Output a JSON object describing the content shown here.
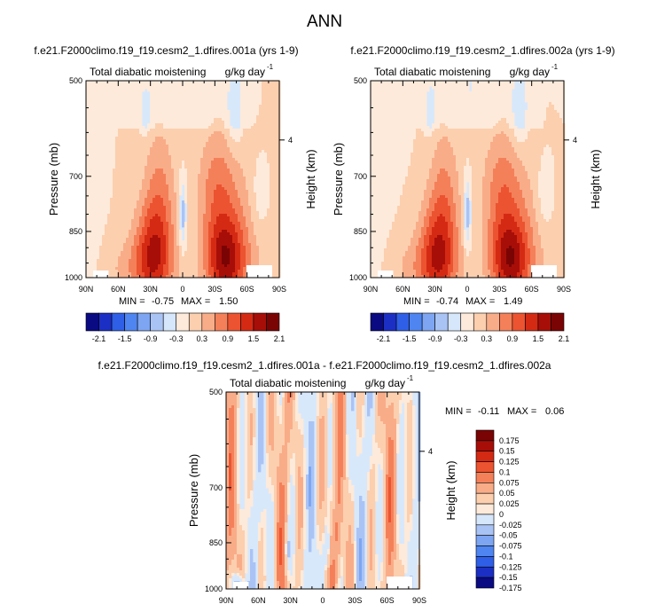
{
  "figure": {
    "title": "ANN"
  },
  "chart_data": [
    {
      "type": "heatmap",
      "title": "f.e21.F2000climo.f19_f19.cesm2_1.dfires.001a (yrs 1-9)",
      "left_label": "Total diabatic moistening",
      "right_label": "g/kg day",
      "units_exponent": "-1",
      "ylabel": "Pressure (mb)",
      "ylabel_right": "Height (km)",
      "x_ticks": [
        "90N",
        "60N",
        "30N",
        "0",
        "30S",
        "60S",
        "90S"
      ],
      "x_tick_values": [
        90,
        60,
        30,
        0,
        -30,
        -60,
        -90
      ],
      "y_ticks": [
        "500",
        "700",
        "850",
        "1000"
      ],
      "y_tick_values": [
        500,
        700,
        850,
        1000
      ],
      "y_right_ticks": [
        "4"
      ],
      "xlim": [
        90,
        -90
      ],
      "ylim": [
        500,
        1000
      ],
      "min_label": "MIN =",
      "min": "-0.75",
      "max_label": "MAX =",
      "max": "1.50",
      "colorbar_labels": [
        "-2.1",
        "-1.5",
        "-0.9",
        "-0.3",
        "0.3",
        "0.9",
        "1.5",
        "2.1"
      ],
      "colorbar_levels": [
        -2.1,
        -1.8,
        -1.5,
        -1.2,
        -0.9,
        -0.6,
        -0.3,
        0,
        0.3,
        0.6,
        0.9,
        1.2,
        1.5,
        1.8,
        2.1
      ]
    },
    {
      "type": "heatmap",
      "title": "f.e21.F2000climo.f19_f19.cesm2_1.dfires.002a (yrs 1-9)",
      "left_label": "Total diabatic moistening",
      "right_label": "g/kg day",
      "units_exponent": "-1",
      "ylabel": "Pressure (mb)",
      "ylabel_right": "Height (km)",
      "x_ticks": [
        "90N",
        "60N",
        "30N",
        "0",
        "30S",
        "60S",
        "90S"
      ],
      "x_tick_values": [
        90,
        60,
        30,
        0,
        -30,
        -60,
        -90
      ],
      "y_ticks": [
        "500",
        "700",
        "850",
        "1000"
      ],
      "y_tick_values": [
        500,
        700,
        850,
        1000
      ],
      "y_right_ticks": [
        "4"
      ],
      "xlim": [
        90,
        -90
      ],
      "ylim": [
        500,
        1000
      ],
      "min_label": "MIN =",
      "min": "-0.74",
      "max_label": "MAX =",
      "max": "1.49",
      "colorbar_labels": [
        "-2.1",
        "-1.5",
        "-0.9",
        "-0.3",
        "0.3",
        "0.9",
        "1.5",
        "2.1"
      ],
      "colorbar_levels": [
        -2.1,
        -1.8,
        -1.5,
        -1.2,
        -0.9,
        -0.6,
        -0.3,
        0,
        0.3,
        0.6,
        0.9,
        1.2,
        1.5,
        1.8,
        2.1
      ]
    },
    {
      "type": "heatmap",
      "title": "f.e21.F2000climo.f19_f19.cesm2_1.dfires.001a - f.e21.F2000climo.f19_f19.cesm2_1.dfires.002a",
      "left_label": "Total diabatic moistening",
      "right_label": "g/kg day",
      "units_exponent": "-1",
      "ylabel": "Pressure (mb)",
      "ylabel_right": "Height (km)",
      "x_ticks": [
        "90N",
        "60N",
        "30N",
        "0",
        "30S",
        "60S",
        "90S"
      ],
      "x_tick_values": [
        90,
        60,
        30,
        0,
        -30,
        -60,
        -90
      ],
      "y_ticks": [
        "500",
        "700",
        "850",
        "1000"
      ],
      "y_tick_values": [
        500,
        700,
        850,
        1000
      ],
      "y_right_ticks": [
        "4"
      ],
      "xlim": [
        90,
        -90
      ],
      "ylim": [
        500,
        1000
      ],
      "min_label": "MIN =",
      "min": "-0.11",
      "max_label": "MAX =",
      "max": "0.06",
      "colorbar_labels": [
        "0.175",
        "0.15",
        "0.125",
        "0.1",
        "0.075",
        "0.05",
        "0.025",
        "0",
        "-0.025",
        "-0.05",
        "-0.075",
        "-0.1",
        "-0.125",
        "-0.15",
        "-0.175"
      ],
      "colorbar_levels": [
        0.175,
        0.15,
        0.125,
        0.1,
        0.075,
        0.05,
        0.025,
        0,
        -0.025,
        -0.05,
        -0.075,
        -0.1,
        -0.125,
        -0.15,
        -0.175
      ]
    }
  ],
  "palette": {
    "diverging": [
      "#0a0a82",
      "#1c2fc4",
      "#2e5fe6",
      "#4f85f0",
      "#7da5f2",
      "#a9c3f5",
      "#d6e6fb",
      "#fdeada",
      "#fccfaf",
      "#f9ac88",
      "#f4805a",
      "#ec5330",
      "#d42a14",
      "#a70e08",
      "#7a0404"
    ],
    "background": "#d8e8fb"
  }
}
